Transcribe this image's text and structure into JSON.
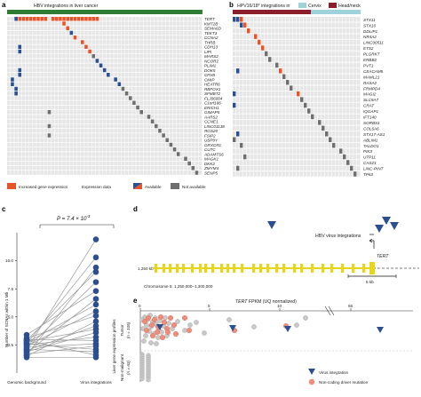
{
  "figure": {
    "panels": {
      "a": {
        "letter": "a",
        "title": "HBV integrations in liver cancer",
        "genes": [
          "TERT",
          "KMT2B",
          "SEMA6D",
          "TEKT3",
          "CCNA2",
          "THRB",
          "CDH13",
          "LIPI",
          "MARS2",
          "NCOR2",
          "PLIM1",
          "DOK5",
          "CFH8",
          "CMIP",
          "HEATR6",
          "RBFOX1",
          "SFMBT2",
          "FLJ06004",
          "C1orf186",
          "ERICH1",
          "GIMAP5",
          "AARS2",
          "CCNE1",
          "LINC01138",
          "RGS20",
          "FSIP2",
          "USP9Y",
          "GRXCR1",
          "CUTC",
          "ADAMTS6",
          "MAGK1",
          "DKK2",
          "ZMYM4",
          "SENP5"
        ],
        "legend": {
          "increased": "Increased gene expression",
          "expression_data": "Expression data",
          "available": "Available",
          "not_available": "Not available"
        }
      },
      "b": {
        "letter": "b",
        "title": "HPV16/18* integrations in",
        "legend_cervix": "Cervix",
        "legend_headneck": "Head/neck",
        "genes": [
          "STX11",
          "STX10",
          "DDLIP1",
          "NR4A2",
          "LINC00511",
          "ETS2",
          "PLGRKT",
          "ERBB2",
          "PVT1",
          "CEACAM5",
          "MAML21",
          "RASA2",
          "FRMPD4",
          "MAGI2",
          "SLC9A7",
          "CRAT",
          "IQGAP1",
          "IFT140",
          "SORBS1",
          "COL6A6",
          "STX17-AS1",
          "ABLIM1",
          "TALDO1",
          "PIK3",
          "UTP11",
          "CASZ1",
          "LINC-PINT",
          "TP63"
        ]
      },
      "c": {
        "letter": "c",
        "pvalue": "P = 7.4 × 10",
        "pvalue_exp": "-3",
        "ylabel": "Number of SCNAs within 1 Mb",
        "x_categories": [
          "Genomic background",
          "Virus integrations"
        ]
      },
      "d": {
        "letter": "d",
        "integrations_label": "HBV virus integrations",
        "gene_label": "TERT",
        "scale_left": "1,250 kb",
        "scale_bar": "5 kb",
        "chromosome_label": "Chromosome 5: 1,250,000–1,300,000"
      },
      "e": {
        "letter": "e",
        "title_gene": "TERT",
        "title_rest": " FPKM (UQ normalized)",
        "ticks": [
          "0",
          "5",
          "10",
          "55"
        ],
        "row_group_label": "Liver gene expression profiles",
        "tumor_label": "Tumor",
        "tumor_n": "(n = 105)",
        "normal_label": "Non-malignant",
        "normal_n": "(n = 63)",
        "legend_virus": "Virus integration",
        "legend_driver": "Non-coding driver mutation"
      }
    },
    "chart_data": {
      "type": "scatter",
      "description_source": "panel c paired dots",
      "x": [
        "Genomic background",
        "Virus integrations"
      ],
      "ylim": [
        0,
        12.5
      ],
      "yticks": [
        2.5,
        5.0,
        7.5,
        10.0
      ],
      "pairs": [
        [
          2.1,
          11.9
        ],
        [
          2.6,
          10.3
        ],
        [
          1.6,
          9.4
        ],
        [
          2.9,
          9.0
        ],
        [
          2.2,
          8.1
        ],
        [
          3.4,
          7.3
        ],
        [
          1.8,
          6.6
        ],
        [
          2.7,
          6.1
        ],
        [
          2.4,
          5.5
        ],
        [
          3.1,
          5.1
        ],
        [
          1.5,
          4.6
        ],
        [
          2.0,
          4.2
        ],
        [
          2.8,
          3.9
        ],
        [
          1.9,
          3.6
        ],
        [
          2.5,
          3.2
        ],
        [
          3.0,
          2.9
        ],
        [
          2.3,
          2.6
        ],
        [
          1.7,
          2.4
        ],
        [
          2.6,
          2.1
        ],
        [
          2.1,
          1.9
        ],
        [
          2.9,
          1.6
        ],
        [
          1.4,
          1.4
        ]
      ]
    },
    "colors": {
      "liver_bar": "#2e7d32",
      "cervix_bar": "#9fd3dc",
      "headneck_bar": "#8b1e2a",
      "increased": "#e8542a",
      "available": "#2b4f8f",
      "not_available": "#6e6e6e",
      "cell_empty": "#e6e6e6",
      "gene_yellow": "#e6d71c",
      "triangle": "#2b4f8f",
      "driver": "#f08c7a"
    }
  }
}
